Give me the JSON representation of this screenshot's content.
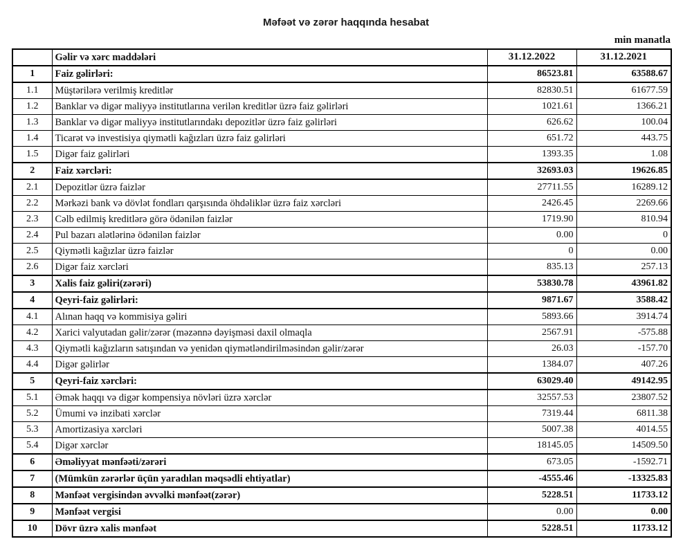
{
  "title": "Məfəət və zərər haqqında hesabat",
  "unit_note": "min manatla",
  "colors": {
    "background": "#ffffff",
    "text": "#111111",
    "border": "#000000"
  },
  "table": {
    "headers": {
      "num": "",
      "label": "Gəlir və xərc maddələri",
      "col2022": "31.12.2022",
      "col2021": "31.12.2021"
    },
    "rows": [
      {
        "num": "1",
        "label": "Faiz gəlirləri:",
        "v2022": "86523.81",
        "v2021": "63588.67",
        "section": true
      },
      {
        "num": "1.1",
        "label": "Müştərilərə verilmiş kreditlər",
        "v2022": "82830.51",
        "v2021": "61677.59",
        "section": false
      },
      {
        "num": "1.2",
        "label": "Banklar və digər maliyyə institutlarına verilən kreditlər üzrə faiz gəlirləri",
        "v2022": "1021.61",
        "v2021": "1366.21",
        "section": false
      },
      {
        "num": "1.3",
        "label": "Banklar və digər maliyyə institutlarındakı depozitlər üzrə faiz gəlirləri",
        "v2022": "626.62",
        "v2021": "100.04",
        "section": false
      },
      {
        "num": "1.4",
        "label": "Ticarət və investisiya qiymətli kağızları üzrə faiz gəlirləri",
        "v2022": "651.72",
        "v2021": "443.75",
        "section": false
      },
      {
        "num": "1.5",
        "label": "Digər faiz gəlirləri",
        "v2022": "1393.35",
        "v2021": "1.08",
        "section": false
      },
      {
        "num": "2",
        "label": "Faiz xərcləri:",
        "v2022": "32693.03",
        "v2021": "19626.85",
        "section": true
      },
      {
        "num": "2.1",
        "label": "Depozitlər üzrə faizlər",
        "v2022": "27711.55",
        "v2021": "16289.12",
        "section": false
      },
      {
        "num": "2.2",
        "label": "Mərkəzi bank və dövlət fondları qarşısında öhdəliklər üzrə faiz xərcləri",
        "v2022": "2426.45",
        "v2021": "2269.66",
        "section": false
      },
      {
        "num": "2.3",
        "label": "Cəlb edilmiş kreditlərə görə ödənilən faizlər",
        "v2022": "1719.90",
        "v2021": "810.94",
        "section": false
      },
      {
        "num": "2.4",
        "label": "Pul bazarı alətlərinə ödənilən faizlər",
        "v2022": "0.00",
        "v2021": "0",
        "section": false
      },
      {
        "num": "2.5",
        "label": "Qiymətli kağızlar üzrə faizlər",
        "v2022": "0",
        "v2021": "0.00",
        "section": false
      },
      {
        "num": "2.6",
        "label": "Digər faiz xərcləri",
        "v2022": "835.13",
        "v2021": "257.13",
        "section": false
      },
      {
        "num": "3",
        "label": "Xalis faiz gəliri(zərəri)",
        "v2022": "53830.78",
        "v2021": "43961.82",
        "section": true
      },
      {
        "num": "4",
        "label": "Qeyri-faiz gəlirləri:",
        "v2022": "9871.67",
        "v2021": "3588.42",
        "section": true
      },
      {
        "num": "4.1",
        "label": "Alınan haqq və kommisiya gəliri",
        "v2022": "5893.66",
        "v2021": "3914.74",
        "section": false
      },
      {
        "num": "4.2",
        "label": "Xarici valyutadan gəlir/zərər (məzənnə dəyişməsi daxil olmaqla",
        "v2022": "2567.91",
        "v2021": "-575.88",
        "section": false
      },
      {
        "num": "4.3",
        "label": "Qiymətli kağızların satışından və yenidən qiymətləndirilməsindən gəlir/zərər",
        "v2022": "26.03",
        "v2021": "-157.70",
        "section": false
      },
      {
        "num": "4.4",
        "label": "Digər gəlirlər",
        "v2022": "1384.07",
        "v2021": "407.26",
        "section": false
      },
      {
        "num": "5",
        "label": "Qeyri-faiz xərcləri:",
        "v2022": "63029.40",
        "v2021": "49142.95",
        "section": true
      },
      {
        "num": "5.1",
        "label": "Əmək haqqı və digər kompensiya növləri üzrə xərclər",
        "v2022": "32557.53",
        "v2021": "23807.52",
        "section": false
      },
      {
        "num": "5.2",
        "label": "Ümumi və inzibati xərclər",
        "v2022": "7319.44",
        "v2021": "6811.38",
        "section": false
      },
      {
        "num": "5.3",
        "label": "Amortizasiya xərcləri",
        "v2022": "5007.38",
        "v2021": "4014.55",
        "section": false
      },
      {
        "num": "5.4",
        "label": "Digər xərclər",
        "v2022": "18145.05",
        "v2021": "14509.50",
        "section": false
      },
      {
        "num": "6",
        "label": "Əməliyyat mənfəəti/zərəri",
        "v2022": "673.05",
        "v2021": "-1592.71",
        "section": true,
        "value_bold": [
          false,
          false
        ]
      },
      {
        "num": "7",
        "label": "(Mümkün zərərlər üçün yaradılan məqsədli ehtiyatlar)",
        "v2022": "-4555.46",
        "v2021": "-13325.83",
        "section": true
      },
      {
        "num": "8",
        "label": "Mənfəət vergisindən əvvəlki mənfəət(zərər)",
        "v2022": "5228.51",
        "v2021": "11733.12",
        "section": true
      },
      {
        "num": "9",
        "label": "Mənfəət vergisi",
        "v2022": "0.00",
        "v2021": "0.00",
        "section": true,
        "value_bold": [
          false,
          true
        ]
      },
      {
        "num": "10",
        "label": "Dövr üzrə xalis mənfəət",
        "v2022": "5228.51",
        "v2021": "11733.12",
        "section": true
      }
    ]
  }
}
